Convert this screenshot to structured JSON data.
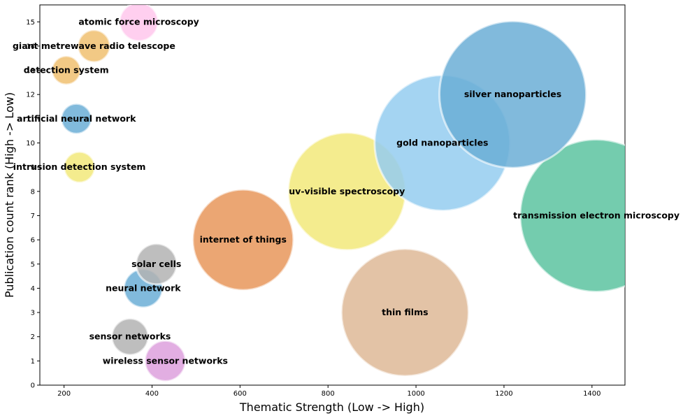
{
  "chart_data": {
    "type": "scatter",
    "title": "",
    "xlabel": "Thematic Strength (Low -> High)",
    "ylabel": "Publication count rank (High -> Low)",
    "xlim": [
      145,
      1475
    ],
    "ylim": [
      0,
      15.7
    ],
    "xticks": [
      200,
      400,
      600,
      800,
      1000,
      1200,
      1400
    ],
    "yticks": [
      0,
      1,
      2,
      3,
      4,
      5,
      6,
      7,
      8,
      9,
      10,
      11,
      12,
      13,
      14,
      15
    ],
    "grid": false,
    "legend": "none",
    "points": [
      {
        "label": "wireless sensor networks",
        "x": 430,
        "y": 1,
        "size": 58,
        "color": "#dda0dd"
      },
      {
        "label": "sensor networks",
        "x": 350,
        "y": 2,
        "size": 52,
        "color": "#b3b3b3"
      },
      {
        "label": "thin films",
        "x": 975,
        "y": 3,
        "size": 182,
        "color": "#deb896"
      },
      {
        "label": "neural network",
        "x": 380,
        "y": 4,
        "size": 55,
        "color": "#6baed6"
      },
      {
        "label": "solar cells",
        "x": 410,
        "y": 5,
        "size": 58,
        "color": "#b3b3b3"
      },
      {
        "label": "internet of things",
        "x": 607,
        "y": 6,
        "size": 144,
        "color": "#e8975a"
      },
      {
        "label": "transmission electron microscopy",
        "x": 1410,
        "y": 7,
        "size": 218,
        "color": "#5cc3a0"
      },
      {
        "label": "uv-visible spectroscopy",
        "x": 843,
        "y": 8,
        "size": 168,
        "color": "#f2e97a"
      },
      {
        "label": "intrusion detection system",
        "x": 235,
        "y": 9,
        "size": 44,
        "color": "#f2e97a"
      },
      {
        "label": "gold nanoparticles",
        "x": 1060,
        "y": 10,
        "size": 194,
        "color": "#94cdf0"
      },
      {
        "label": "artificial neural network",
        "x": 228,
        "y": 11,
        "size": 43,
        "color": "#6baed6"
      },
      {
        "label": "silver nanoparticles",
        "x": 1220,
        "y": 12,
        "size": 210,
        "color": "#6baed6"
      },
      {
        "label": "detection system",
        "x": 205,
        "y": 13,
        "size": 41,
        "color": "#f0c070"
      },
      {
        "label": "giant metrewave radio telescope",
        "x": 268,
        "y": 14,
        "size": 46,
        "color": "#f0c070"
      },
      {
        "label": "atomic force microscopy",
        "x": 370,
        "y": 15,
        "size": 55,
        "color": "#ffc7ec"
      }
    ]
  }
}
